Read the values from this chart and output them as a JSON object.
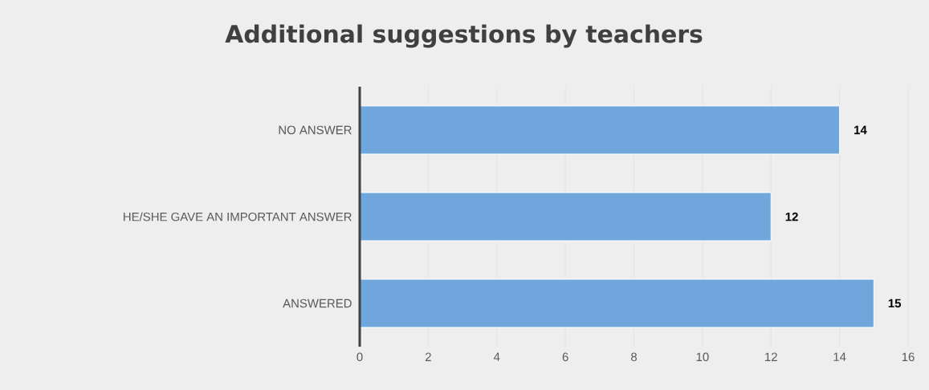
{
  "chart_data": {
    "type": "bar",
    "orientation": "horizontal",
    "title": "Additional suggestions by teachers",
    "categories": [
      "NO ANSWER",
      "HE/SHE GAVE AN IMPORTANT ANSWER",
      "ANSWERED"
    ],
    "values": [
      14,
      12,
      15
    ],
    "color": "#6fa6dc",
    "xlim": [
      0,
      16
    ],
    "xticks": [
      0,
      2,
      4,
      6,
      8,
      10,
      12,
      14,
      16
    ],
    "grid": "x",
    "data_labels": true
  }
}
